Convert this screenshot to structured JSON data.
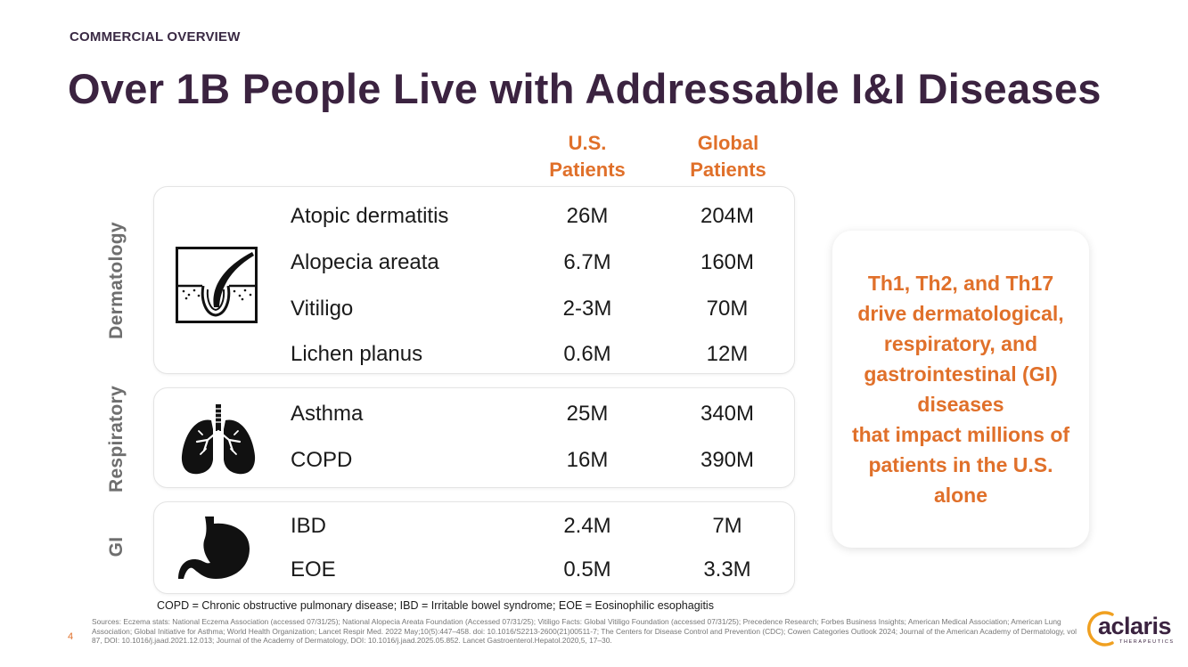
{
  "header": {
    "eyebrow": "COMMERCIAL OVERVIEW",
    "title": "Over 1B People Live with Addressable I&I Diseases"
  },
  "columns": {
    "us_line1": "U.S.",
    "us_line2": "Patients",
    "global_line1": "Global",
    "global_line2": "Patients"
  },
  "groups": [
    {
      "label": "Dermatology",
      "icon": "hair-follicle-icon",
      "rows": [
        {
          "name": "Atopic dermatitis",
          "us": "26M",
          "global": "204M"
        },
        {
          "name": "Alopecia areata",
          "us": "6.7M",
          "global": "160M"
        },
        {
          "name": "Vitiligo",
          "us": "2-3M",
          "global": "70M"
        },
        {
          "name": "Lichen planus",
          "us": "0.6M",
          "global": "12M"
        }
      ]
    },
    {
      "label": "Respiratory",
      "icon": "lungs-icon",
      "rows": [
        {
          "name": "Asthma",
          "us": "25M",
          "global": "340M"
        },
        {
          "name": "COPD",
          "us": "16M",
          "global": "390M"
        }
      ]
    },
    {
      "label": "GI",
      "icon": "stomach-icon",
      "rows": [
        {
          "name": "IBD",
          "us": "2.4M",
          "global": "7M"
        },
        {
          "name": "EOE",
          "us": "0.5M",
          "global": "3.3M"
        }
      ]
    }
  ],
  "callout": {
    "text": "Th1, Th2, and Th17\ndrive dermatological,\nrespiratory, and\ngastrointestinal (GI)\ndiseases\nthat impact millions of\npatients in the U.S.\nalone"
  },
  "footer": {
    "abbreviations": "COPD = Chronic obstructive pulmonary disease; IBD = Irritable bowel syndrome; EOE = Eosinophilic esophagitis",
    "page_number": "4",
    "sources": "Sources: Eczema stats: National Eczema Association (accessed 07/31/25); National Alopecia Areata Foundation (Accessed 07/31/25); Vitiligo Facts: Global Vitiligo Foundation (accessed 07/31/25); Precedence Research; Forbes Business Insights; American Medical Association; American Lung Association; Global Initiative for Asthma; World Health Organization; Lancet Respir Med. 2022 May;10(5):447–458. doi: 10.1016/S2213-2600(21)00511-7; The Centers for Disease Control and Prevention (CDC); Cowen Categories Outlook 2024; Journal of the American Academy of Dermatology, vol 87, DOI: 10.1016/j.jaad.2021.12.013; Journal of the Academy of Dermatology, DOI: 10.1016/j.jaad.2025.05.852. Lancet Gastroenterol.Hepatol.2020,5, 17–30."
  },
  "logo": {
    "word": "aclaris",
    "sub": "THERAPEUTICS"
  },
  "colors": {
    "accent": "#e0702a",
    "title": "#3b2340"
  }
}
